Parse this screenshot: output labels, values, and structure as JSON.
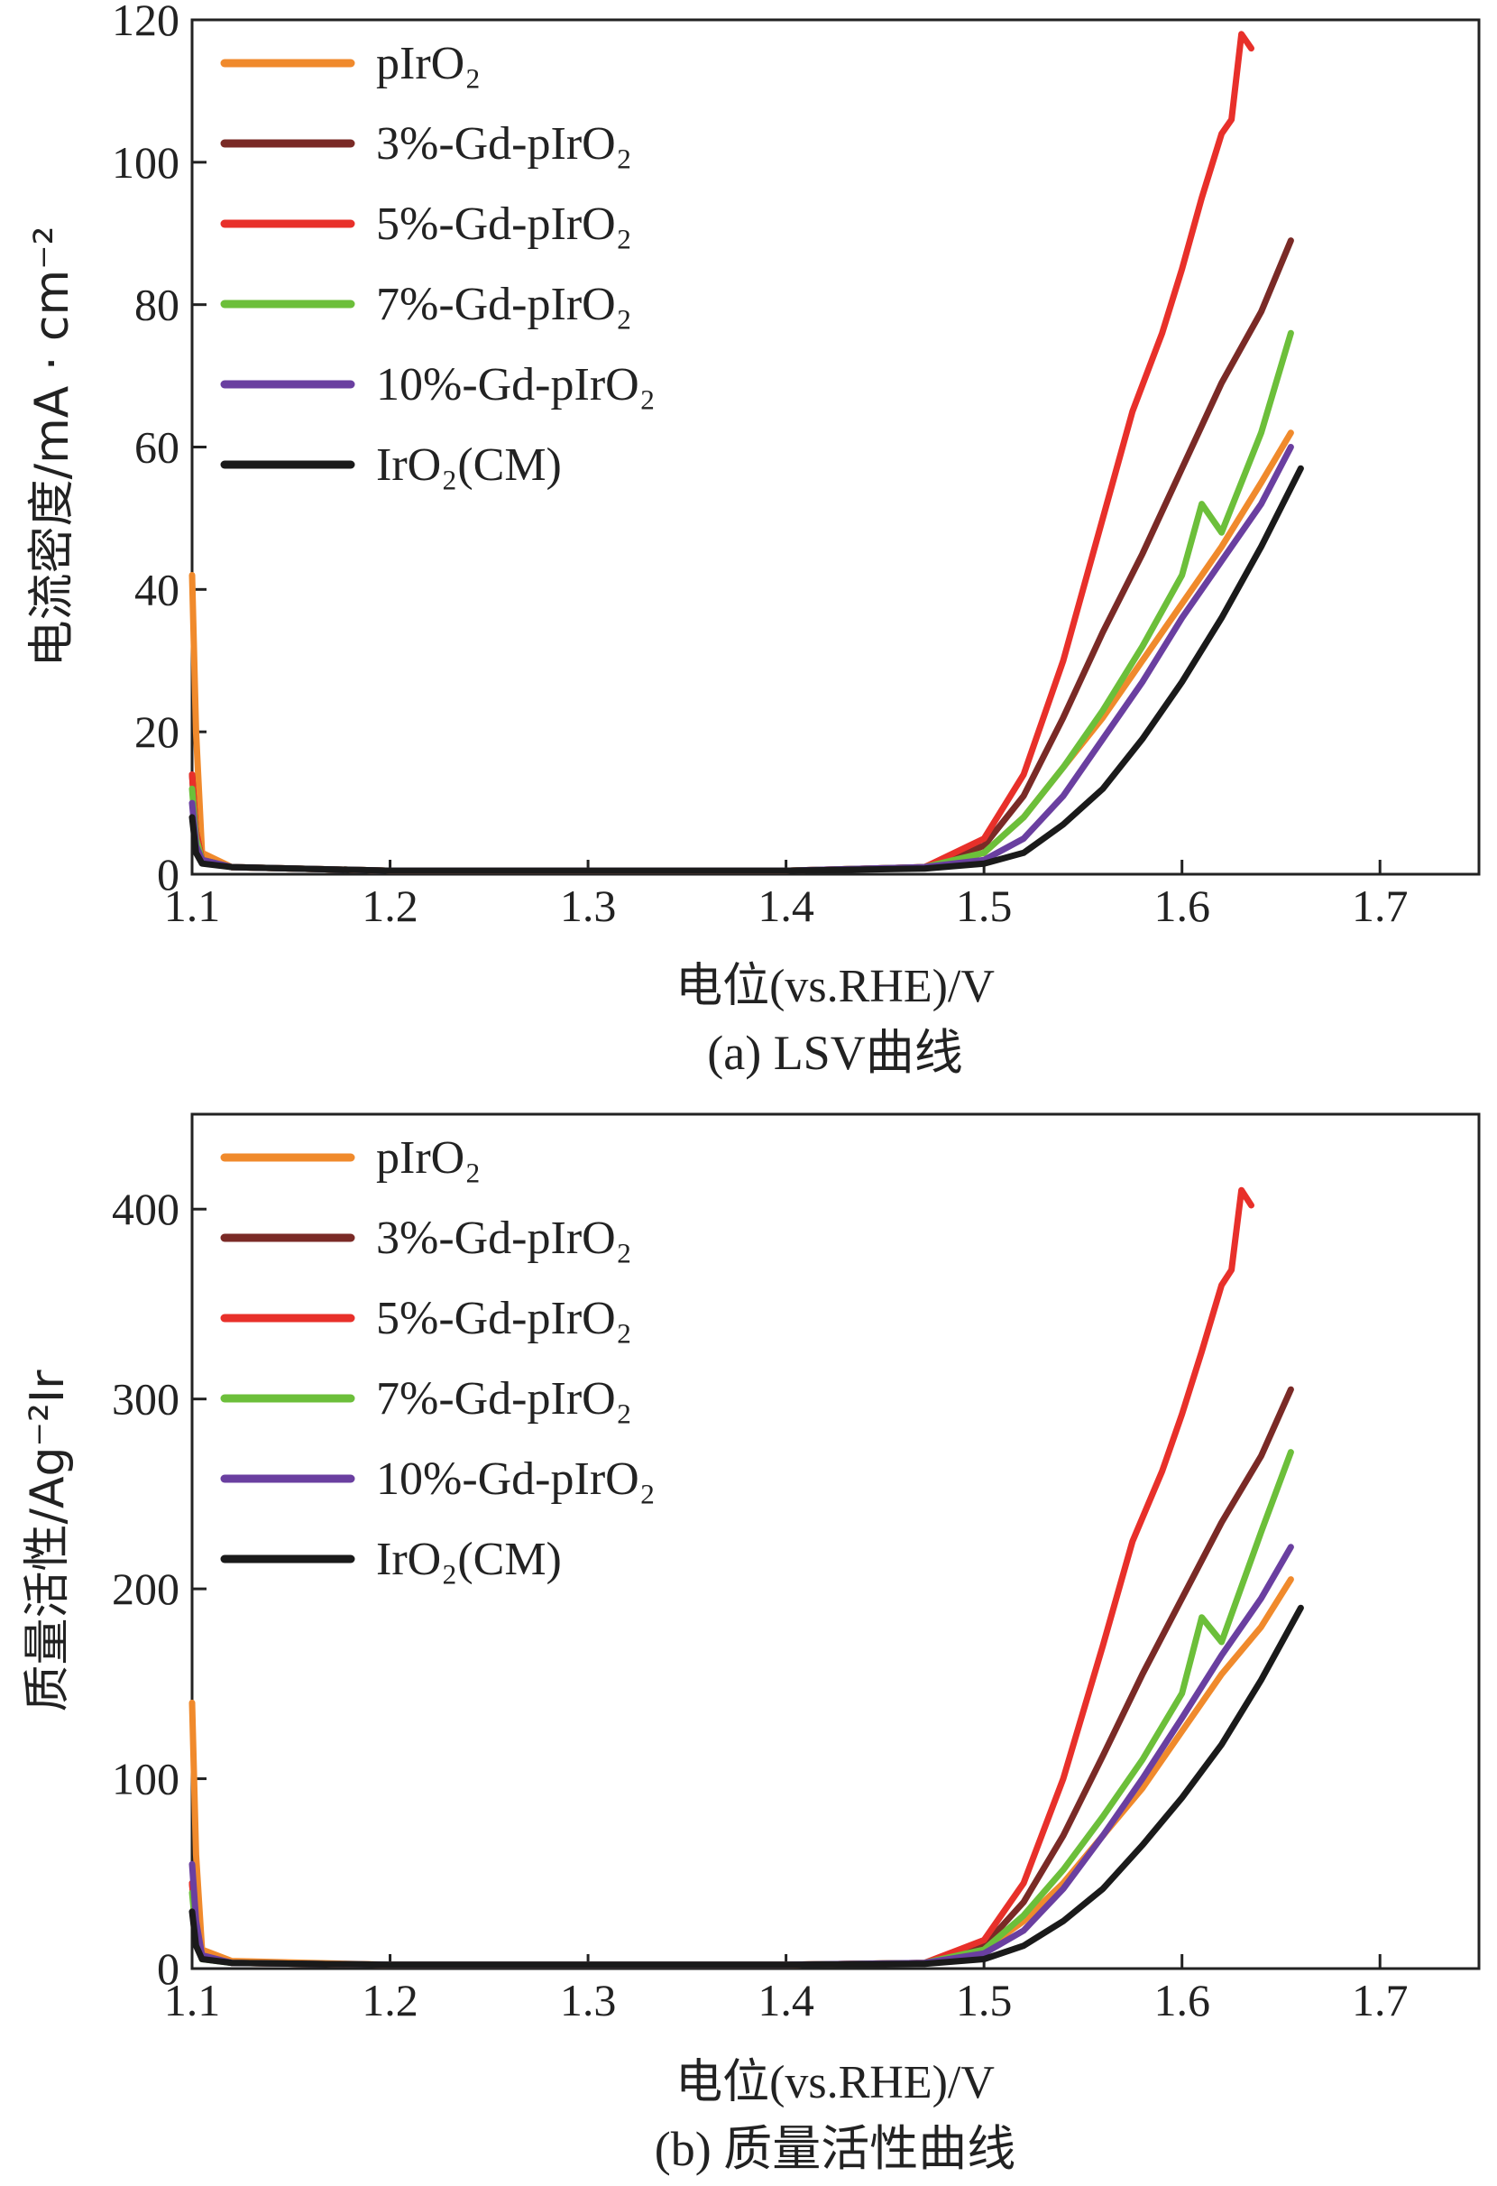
{
  "chart_data": [
    {
      "type": "line",
      "xlabel": "电位(vs.RHE)/V",
      "ylabel": "电流密度/mA · cm⁻²",
      "caption": "(a) LSV曲线",
      "xlim": [
        1.1,
        1.75
      ],
      "ylim": [
        0,
        120
      ],
      "xticks": [
        "1.1",
        "1.2",
        "1.3",
        "1.4",
        "1.5",
        "1.6",
        "1.7"
      ],
      "yticks": [
        "0",
        "20",
        "40",
        "60",
        "80",
        "100",
        "120"
      ],
      "legend_position": "top-left",
      "series": [
        {
          "name": "pIrO₂",
          "color": "#f08a2c",
          "x": [
            1.1,
            1.102,
            1.105,
            1.12,
            1.2,
            1.3,
            1.4,
            1.47,
            1.5,
            1.52,
            1.54,
            1.56,
            1.58,
            1.6,
            1.62,
            1.64,
            1.655
          ],
          "y": [
            42,
            20,
            3,
            1,
            0.5,
            0.5,
            0.5,
            1,
            3,
            8,
            15,
            22,
            30,
            38,
            46,
            55,
            62
          ]
        },
        {
          "name": "3%-Gd-pIrO₂",
          "color": "#7a2a26",
          "x": [
            1.1,
            1.102,
            1.105,
            1.12,
            1.2,
            1.3,
            1.4,
            1.47,
            1.5,
            1.52,
            1.54,
            1.56,
            1.58,
            1.6,
            1.62,
            1.64,
            1.655
          ],
          "y": [
            14,
            6,
            2,
            1,
            0.5,
            0.5,
            0.5,
            1,
            4,
            11,
            22,
            34,
            45,
            57,
            69,
            79,
            89
          ]
        },
        {
          "name": "5%-Gd-pIrO₂",
          "color": "#e8302a",
          "x": [
            1.1,
            1.102,
            1.105,
            1.12,
            1.2,
            1.3,
            1.4,
            1.47,
            1.5,
            1.52,
            1.54,
            1.56,
            1.575,
            1.59,
            1.6,
            1.61,
            1.62,
            1.625,
            1.63,
            1.635
          ],
          "y": [
            14,
            6,
            2,
            1,
            0.5,
            0.5,
            0.5,
            1,
            5,
            14,
            30,
            50,
            65,
            76,
            85,
            95,
            104,
            106,
            118,
            116
          ]
        },
        {
          "name": "7%-Gd-pIrO₂",
          "color": "#6cbf3a",
          "x": [
            1.1,
            1.102,
            1.105,
            1.12,
            1.2,
            1.3,
            1.4,
            1.47,
            1.5,
            1.52,
            1.54,
            1.56,
            1.58,
            1.6,
            1.61,
            1.62,
            1.64,
            1.655
          ],
          "y": [
            12,
            5,
            2,
            1,
            0.5,
            0.5,
            0.5,
            1,
            3,
            8,
            15,
            23,
            32,
            42,
            52,
            48,
            62,
            76
          ]
        },
        {
          "name": "10%-Gd-pIrO₂",
          "color": "#6a3fa0",
          "x": [
            1.1,
            1.102,
            1.105,
            1.12,
            1.2,
            1.3,
            1.4,
            1.47,
            1.5,
            1.52,
            1.54,
            1.56,
            1.58,
            1.6,
            1.62,
            1.64,
            1.655
          ],
          "y": [
            10,
            4,
            2,
            1,
            0.5,
            0.5,
            0.5,
            1,
            2,
            5,
            11,
            19,
            27,
            36,
            44,
            52,
            60
          ]
        },
        {
          "name": "IrO₂(CM)",
          "color": "#1a1a1a",
          "x": [
            1.1,
            1.102,
            1.105,
            1.12,
            1.2,
            1.3,
            1.4,
            1.47,
            1.5,
            1.52,
            1.54,
            1.56,
            1.58,
            1.6,
            1.62,
            1.64,
            1.66
          ],
          "y": [
            8,
            3,
            1.5,
            1,
            0.5,
            0.5,
            0.5,
            0.8,
            1.5,
            3,
            7,
            12,
            19,
            27,
            36,
            46,
            57
          ]
        }
      ]
    },
    {
      "type": "line",
      "xlabel": "电位(vs.RHE)/V",
      "ylabel": "质量活性/Ag⁻²Ir",
      "caption": "(b) 质量活性曲线",
      "xlim": [
        1.1,
        1.75
      ],
      "ylim": [
        0,
        450
      ],
      "xticks": [
        "1.1",
        "1.2",
        "1.3",
        "1.4",
        "1.5",
        "1.6",
        "1.7"
      ],
      "yticks": [
        "0",
        "100",
        "200",
        "300",
        "400"
      ],
      "legend_position": "top-left",
      "series": [
        {
          "name": "pIrO₂",
          "color": "#f08a2c",
          "x": [
            1.1,
            1.102,
            1.105,
            1.12,
            1.2,
            1.3,
            1.4,
            1.47,
            1.5,
            1.52,
            1.54,
            1.56,
            1.58,
            1.6,
            1.62,
            1.64,
            1.655
          ],
          "y": [
            140,
            60,
            10,
            4,
            2,
            2,
            2,
            3,
            10,
            25,
            45,
            70,
            95,
            125,
            155,
            180,
            205
          ]
        },
        {
          "name": "3%-Gd-pIrO₂",
          "color": "#7a2a26",
          "x": [
            1.1,
            1.102,
            1.105,
            1.12,
            1.2,
            1.3,
            1.4,
            1.47,
            1.5,
            1.52,
            1.54,
            1.56,
            1.58,
            1.6,
            1.62,
            1.64,
            1.655
          ],
          "y": [
            45,
            20,
            6,
            3,
            2,
            2,
            2,
            3,
            12,
            35,
            70,
            112,
            155,
            195,
            235,
            270,
            305
          ]
        },
        {
          "name": "5%-Gd-pIrO₂",
          "color": "#e8302a",
          "x": [
            1.1,
            1.102,
            1.105,
            1.12,
            1.2,
            1.3,
            1.4,
            1.47,
            1.5,
            1.52,
            1.54,
            1.56,
            1.575,
            1.59,
            1.6,
            1.61,
            1.62,
            1.625,
            1.63,
            1.635
          ],
          "y": [
            45,
            20,
            6,
            3,
            2,
            2,
            2,
            3,
            15,
            45,
            100,
            170,
            225,
            262,
            292,
            325,
            360,
            368,
            410,
            402
          ]
        },
        {
          "name": "7%-Gd-pIrO₂",
          "color": "#6cbf3a",
          "x": [
            1.1,
            1.102,
            1.105,
            1.12,
            1.2,
            1.3,
            1.4,
            1.47,
            1.5,
            1.52,
            1.54,
            1.56,
            1.58,
            1.6,
            1.61,
            1.62,
            1.64,
            1.655
          ],
          "y": [
            40,
            18,
            5,
            3,
            2,
            2,
            2,
            3,
            10,
            28,
            52,
            80,
            110,
            145,
            185,
            172,
            230,
            272
          ]
        },
        {
          "name": "10%-Gd-pIrO₂",
          "color": "#6a3fa0",
          "x": [
            1.1,
            1.102,
            1.105,
            1.12,
            1.2,
            1.3,
            1.4,
            1.47,
            1.5,
            1.52,
            1.54,
            1.56,
            1.58,
            1.6,
            1.62,
            1.64,
            1.655
          ],
          "y": [
            55,
            25,
            7,
            3,
            2,
            2,
            2,
            3,
            8,
            20,
            42,
            70,
            100,
            132,
            165,
            195,
            222
          ]
        },
        {
          "name": "IrO₂(CM)",
          "color": "#1a1a1a",
          "x": [
            1.1,
            1.102,
            1.105,
            1.12,
            1.2,
            1.3,
            1.4,
            1.47,
            1.5,
            1.52,
            1.54,
            1.56,
            1.58,
            1.6,
            1.62,
            1.64,
            1.66
          ],
          "y": [
            30,
            12,
            5,
            3,
            2,
            2,
            2,
            2.5,
            5,
            12,
            25,
            42,
            65,
            90,
            118,
            152,
            190
          ]
        }
      ]
    }
  ]
}
